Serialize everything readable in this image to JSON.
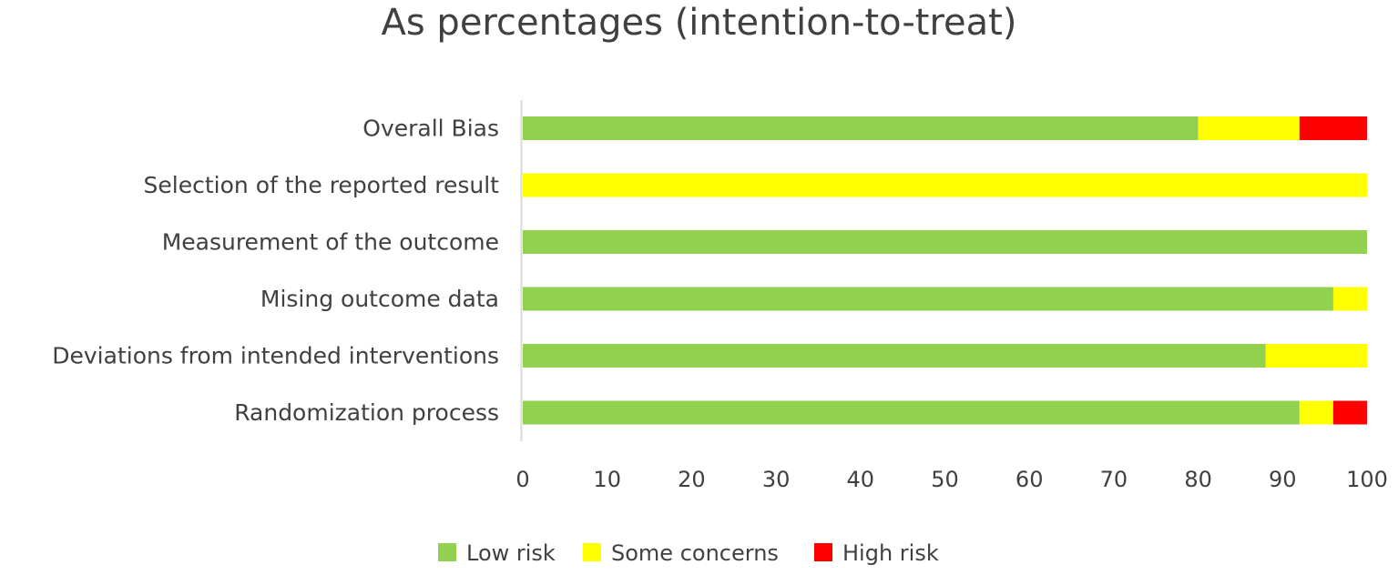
{
  "chart_data": {
    "type": "bar",
    "orientation": "horizontal",
    "stacked": true,
    "title": "As percentages (intention-to-treat)",
    "xlabel": "",
    "ylabel": "",
    "xlim": [
      0,
      100
    ],
    "x_ticks": [
      0,
      10,
      20,
      30,
      40,
      50,
      60,
      70,
      80,
      90,
      100
    ],
    "grid": false,
    "legend_position": "bottom",
    "categories": [
      "Overall Bias",
      "Selection of the reported result",
      "Measurement of the outcome",
      "Mising outcome data",
      "Deviations from intended interventions",
      "Randomization process"
    ],
    "series": [
      {
        "name": "Low risk",
        "color": "#92D050",
        "values": [
          80,
          0,
          100,
          96,
          88,
          92
        ]
      },
      {
        "name": "Some concerns",
        "color": "#FFFF00",
        "values": [
          12,
          100,
          0,
          4,
          12,
          4
        ]
      },
      {
        "name": "High risk",
        "color": "#FF0000",
        "values": [
          8,
          0,
          0,
          0,
          0,
          4
        ]
      }
    ]
  }
}
